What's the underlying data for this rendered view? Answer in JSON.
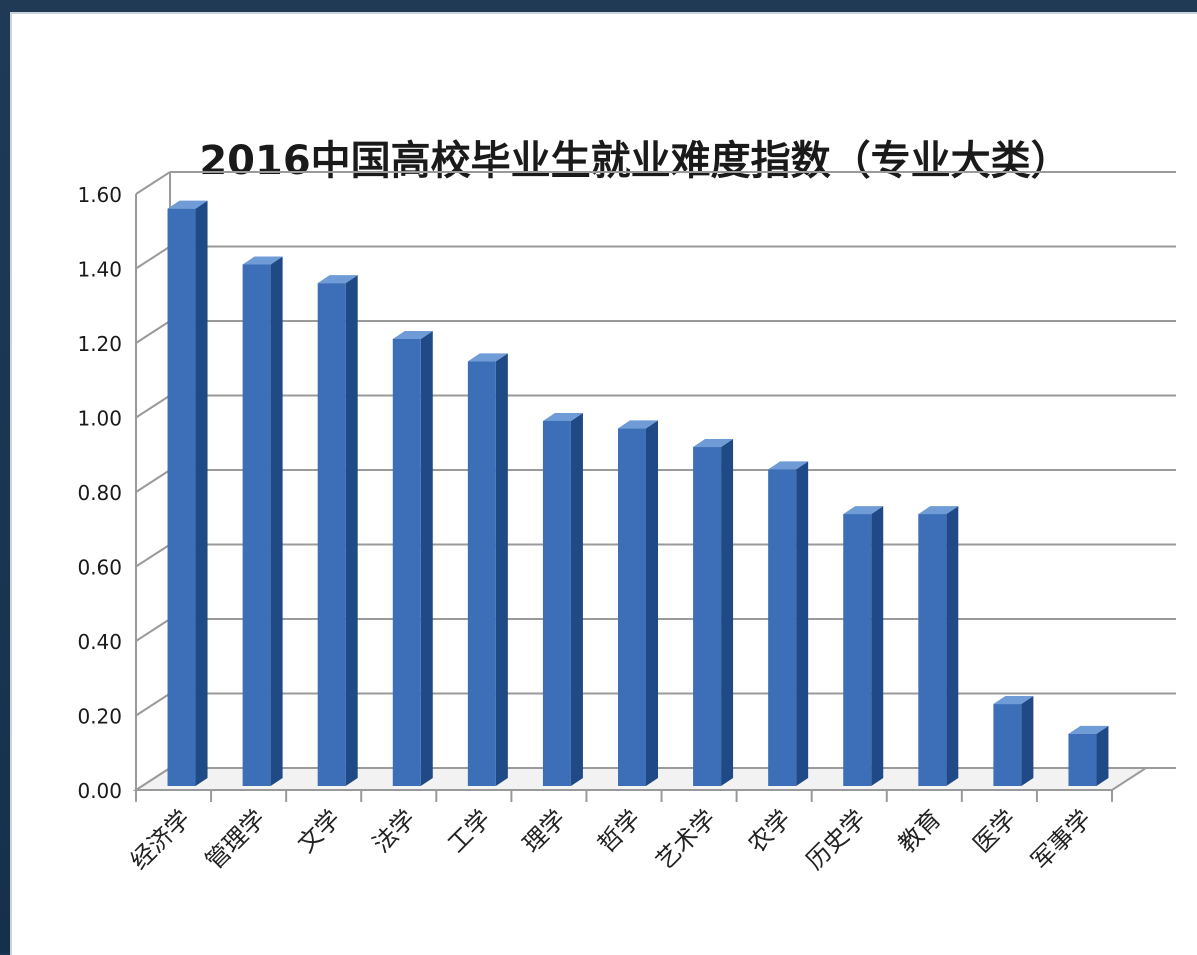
{
  "chart_data": {
    "type": "bar",
    "title": "2016中国高校毕业生就业难度指数（专业大类）",
    "categories": [
      "经济学",
      "管理学",
      "文学",
      "法学",
      "工学",
      "理学",
      "哲学",
      "艺术学",
      "农学",
      "历史学",
      "教育",
      "医学",
      "军事学"
    ],
    "values": [
      1.55,
      1.4,
      1.35,
      1.2,
      1.14,
      0.98,
      0.96,
      0.91,
      0.85,
      0.73,
      0.73,
      0.22,
      0.14
    ],
    "yticks": [
      "0.00",
      "0.20",
      "0.40",
      "0.60",
      "0.80",
      "1.00",
      "1.20",
      "1.40",
      "1.60"
    ],
    "ylim": [
      0,
      1.6
    ],
    "grid": true,
    "bar_color": "#3d6fb8",
    "bar_dark_color": "#1f4a86",
    "bar_top_color": "#6f9bd6"
  }
}
